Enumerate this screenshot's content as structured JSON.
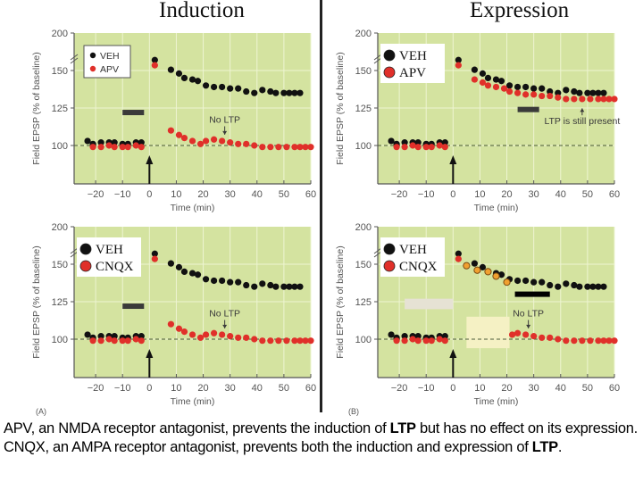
{
  "titles": {
    "induction": "Induction",
    "expression": "Expression"
  },
  "panel_labels": {
    "a": "(A)",
    "b": "(B)"
  },
  "caption": {
    "part1": "APV, an NMDA receptor antagonist, prevents the induction of ",
    "ltp1": "LTP",
    "part2": " but has no effect on its expression. CNQX, an AMPA receptor antagonist, prevents both the induction and expression of ",
    "ltp2": "LTP",
    "part3": "."
  },
  "colors": {
    "background": "#d4e3a0",
    "grid": "#eef4d2",
    "veh": "#111111",
    "drug": "#e0302a",
    "drug_orange_fill": "#f0a030",
    "bar": "#3a3a3a",
    "bar_black": "#000000",
    "dashed": "#4a5a3a"
  },
  "chart_data": [
    {
      "id": "induction-apv",
      "type": "scatter",
      "title": "Induction",
      "xlabel": "Time (min)",
      "ylabel": "Field EPSP (% of baseline)",
      "xlim": [
        -28,
        60
      ],
      "ylim": [
        75,
        200
      ],
      "xticks": [
        -20,
        -10,
        0,
        10,
        20,
        30,
        40,
        50,
        60
      ],
      "yticks": [
        100,
        125,
        150,
        200
      ],
      "axis_break": true,
      "grid": true,
      "legend": {
        "position": "top-left",
        "style": "small",
        "entries": [
          "VEH",
          "APV"
        ]
      },
      "drug_bar": {
        "x_start": -10,
        "x_end": -2,
        "y": 122,
        "style": "gray"
      },
      "annotation": {
        "text": "No LTP",
        "x": 28,
        "y": 114,
        "arrow_to": 106
      },
      "stimulus_arrow_x": 0,
      "series": [
        {
          "name": "VEH",
          "color_key": "veh",
          "x": [
            -23,
            -21,
            -18,
            -15,
            -13,
            -10,
            -8,
            -5,
            -3,
            2,
            8,
            11,
            13,
            16,
            18,
            21,
            24,
            27,
            30,
            33,
            36,
            39,
            42,
            45,
            47,
            50,
            52,
            54,
            56
          ],
          "y": [
            103,
            101,
            102,
            102,
            102,
            101,
            101,
            102,
            102,
            164,
            151,
            148,
            145,
            144,
            143,
            140,
            139,
            139,
            138,
            138,
            136,
            135,
            137,
            136,
            135,
            135,
            135,
            135,
            135
          ]
        },
        {
          "name": "APV",
          "color_key": "drug",
          "x": [
            -21,
            -18,
            -15,
            -13,
            -10,
            -8,
            -5,
            -3,
            2,
            8,
            11,
            13,
            16,
            19,
            21,
            24,
            27,
            30,
            33,
            36,
            39,
            42,
            45,
            48,
            51,
            54,
            56,
            58,
            60
          ],
          "y": [
            99,
            99,
            100,
            99,
            99,
            99,
            100,
            99,
            157,
            110,
            107,
            105,
            103,
            101,
            103,
            104,
            103,
            102,
            101,
            101,
            100,
            99,
            99,
            99,
            99,
            99,
            99,
            99,
            99
          ]
        }
      ]
    },
    {
      "id": "expression-apv",
      "type": "scatter",
      "title": "Expression",
      "xlabel": "Time (min)",
      "ylabel": "Field EPSP (% of baseline)",
      "xlim": [
        -28,
        60
      ],
      "ylim": [
        75,
        200
      ],
      "xticks": [
        -20,
        -10,
        0,
        10,
        20,
        30,
        40,
        50,
        60
      ],
      "yticks": [
        100,
        125,
        150,
        200
      ],
      "axis_break": true,
      "grid": true,
      "legend": {
        "position": "top-left",
        "style": "large-serif",
        "entries": [
          "VEH",
          "APV"
        ]
      },
      "drug_bar": {
        "x_start": 24,
        "x_end": 32,
        "y": 124,
        "style": "gray"
      },
      "annotation": {
        "text": "LTP is still present",
        "x": 48,
        "y": 113,
        "arrow_to": 126
      },
      "stimulus_arrow_x": 0,
      "series": [
        {
          "name": "VEH",
          "color_key": "veh",
          "x": [
            -23,
            -21,
            -18,
            -15,
            -13,
            -10,
            -8,
            -5,
            -3,
            2,
            8,
            11,
            13,
            16,
            18,
            21,
            24,
            27,
            30,
            33,
            36,
            39,
            42,
            45,
            47,
            50,
            52,
            54,
            56
          ],
          "y": [
            103,
            101,
            102,
            102,
            102,
            101,
            101,
            102,
            102,
            164,
            151,
            148,
            145,
            144,
            143,
            140,
            139,
            139,
            138,
            138,
            136,
            135,
            137,
            136,
            135,
            135,
            135,
            135,
            135
          ]
        },
        {
          "name": "APV",
          "color_key": "drug",
          "x": [
            -21,
            -18,
            -15,
            -13,
            -10,
            -8,
            -5,
            -3,
            2,
            8,
            11,
            13,
            16,
            19,
            21,
            24,
            27,
            30,
            33,
            36,
            39,
            42,
            45,
            48,
            51,
            54,
            56,
            58,
            60
          ],
          "y": [
            99,
            99,
            100,
            99,
            99,
            99,
            100,
            99,
            157,
            144,
            142,
            140,
            139,
            138,
            136,
            135,
            134,
            134,
            133,
            133,
            132,
            131,
            131,
            131,
            131,
            131,
            131,
            131,
            131
          ]
        }
      ]
    },
    {
      "id": "induction-cnqx",
      "type": "scatter",
      "title": "",
      "xlabel": "Time (min)",
      "ylabel": "Field EPSP (% of baseline)",
      "xlim": [
        -28,
        60
      ],
      "ylim": [
        75,
        200
      ],
      "xticks": [
        -20,
        -10,
        0,
        10,
        20,
        30,
        40,
        50,
        60
      ],
      "yticks": [
        100,
        125,
        150,
        200
      ],
      "axis_break": true,
      "grid": true,
      "legend": {
        "position": "top-left",
        "style": "large-serif",
        "entries": [
          "VEH",
          "CNQX"
        ]
      },
      "drug_bar": {
        "x_start": -10,
        "x_end": -2,
        "y": 122,
        "style": "gray"
      },
      "annotation": {
        "text": "No LTP",
        "x": 28,
        "y": 114,
        "arrow_to": 106
      },
      "stimulus_arrow_x": 0,
      "series": [
        {
          "name": "VEH",
          "color_key": "veh",
          "x": [
            -23,
            -21,
            -18,
            -15,
            -13,
            -10,
            -8,
            -5,
            -3,
            2,
            8,
            11,
            13,
            16,
            18,
            21,
            24,
            27,
            30,
            33,
            36,
            39,
            42,
            45,
            47,
            50,
            52,
            54,
            56
          ],
          "y": [
            103,
            101,
            102,
            102,
            102,
            101,
            101,
            102,
            102,
            164,
            151,
            148,
            145,
            144,
            143,
            140,
            139,
            139,
            138,
            138,
            136,
            135,
            137,
            136,
            135,
            135,
            135,
            135,
            135
          ]
        },
        {
          "name": "CNQX",
          "color_key": "drug",
          "x": [
            -21,
            -18,
            -15,
            -13,
            -10,
            -8,
            -5,
            -3,
            2,
            8,
            11,
            13,
            16,
            19,
            21,
            24,
            27,
            30,
            33,
            36,
            39,
            42,
            45,
            48,
            51,
            54,
            56,
            58,
            60
          ],
          "y": [
            99,
            99,
            100,
            99,
            99,
            99,
            100,
            99,
            157,
            110,
            107,
            105,
            103,
            101,
            103,
            104,
            103,
            102,
            101,
            101,
            100,
            99,
            99,
            99,
            99,
            99,
            99,
            99,
            99
          ]
        }
      ]
    },
    {
      "id": "expression-cnqx",
      "type": "scatter",
      "title": "",
      "xlabel": "Time (min)",
      "ylabel": "Field EPSP (% of baseline)",
      "xlim": [
        -28,
        60
      ],
      "ylim": [
        75,
        200
      ],
      "xticks": [
        -20,
        -10,
        0,
        10,
        20,
        30,
        40,
        50,
        60
      ],
      "yticks": [
        100,
        125,
        150,
        200
      ],
      "axis_break": true,
      "grid": true,
      "legend": {
        "position": "top-left",
        "style": "large-serif",
        "entries": [
          "VEH",
          "CNQX"
        ]
      },
      "drug_bar": {
        "x_start": 23,
        "x_end": 36,
        "y": 130,
        "style": "black"
      },
      "overlay_boxes": [
        {
          "x_start": -18,
          "x_end": 0,
          "y_start": 120,
          "y_end": 127,
          "color": "#e6e2d4"
        },
        {
          "x_start": 5,
          "x_end": 21,
          "y_start": 94,
          "y_end": 115,
          "color": "#f5f1c4"
        }
      ],
      "annotation": {
        "text": "No LTP",
        "x": 28,
        "y": 114,
        "arrow_to": 106
      },
      "stimulus_arrow_x": 0,
      "series": [
        {
          "name": "VEH",
          "color_key": "veh",
          "x": [
            -23,
            -21,
            -18,
            -15,
            -13,
            -10,
            -8,
            -5,
            -3,
            2,
            8,
            11,
            13,
            16,
            18,
            21,
            24,
            27,
            30,
            33,
            36,
            39,
            42,
            45,
            47,
            50,
            52,
            54,
            56
          ],
          "y": [
            103,
            101,
            102,
            102,
            102,
            101,
            101,
            102,
            102,
            164,
            151,
            148,
            145,
            144,
            143,
            140,
            139,
            139,
            138,
            138,
            136,
            135,
            137,
            136,
            135,
            135,
            135,
            135,
            135
          ]
        },
        {
          "name": "CNQX",
          "color_key": "drug",
          "x": [
            -21,
            -18,
            -15,
            -13,
            -10,
            -8,
            -5,
            -3,
            2,
            22,
            24,
            27,
            30,
            33,
            36,
            39,
            42,
            45,
            48,
            51,
            54,
            56,
            58,
            60
          ],
          "y": [
            99,
            99,
            100,
            99,
            99,
            99,
            100,
            99,
            157,
            103,
            104,
            103,
            102,
            101,
            101,
            100,
            99,
            99,
            99,
            99,
            99,
            99,
            99,
            99
          ]
        },
        {
          "name": "CNQX (orange, during drug)",
          "color_key": "drug_orange_fill",
          "x": [
            5,
            9,
            13,
            16,
            20
          ],
          "y": [
            149,
            146,
            145,
            142,
            138
          ]
        }
      ]
    }
  ]
}
